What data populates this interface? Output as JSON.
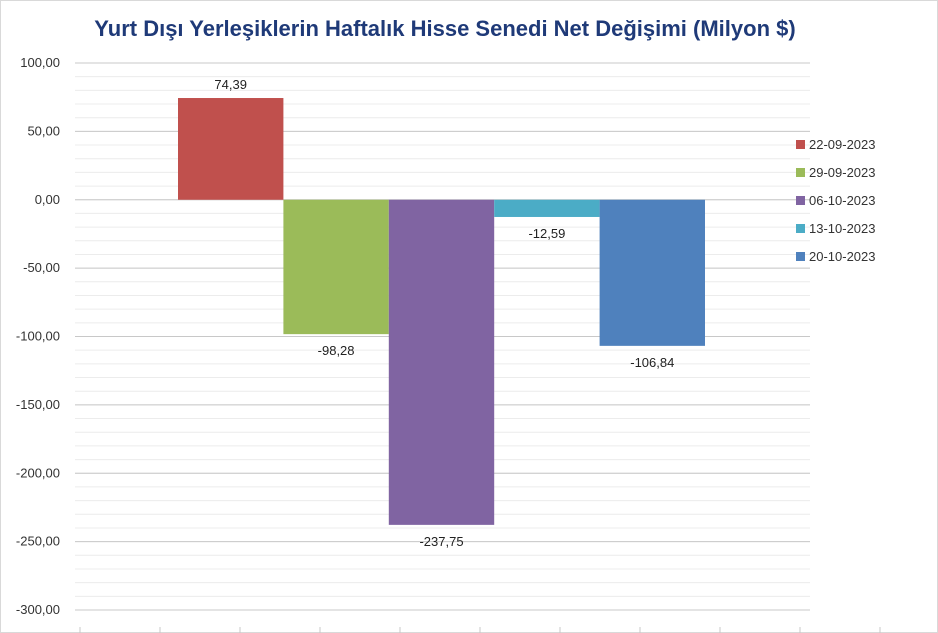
{
  "chart_data": {
    "type": "bar",
    "title": "Yurt Dışı Yerleşiklerin Haftalık Hisse Senedi Net Değişimi (Milyon $)",
    "ylim": [
      -300,
      100
    ],
    "yticks": [
      "100,00",
      "50,00",
      "0,00",
      "-50,00",
      "-100,00",
      "-150,00",
      "-200,00",
      "-250,00",
      "-300,00"
    ],
    "grid": true,
    "legend_position": "right",
    "series": [
      {
        "name": "22-09-2023",
        "value": 74.39,
        "label": "74,39",
        "color": "#c0504d"
      },
      {
        "name": "29-09-2023",
        "value": -98.28,
        "label": "-98,28",
        "color": "#9bbb59"
      },
      {
        "name": "06-10-2023",
        "value": -237.75,
        "label": "-237,75",
        "color": "#8064a2"
      },
      {
        "name": "13-10-2023",
        "value": -12.59,
        "label": "-12,59",
        "color": "#4bacc6"
      },
      {
        "name": "20-10-2023",
        "value": -106.84,
        "label": "-106,84",
        "color": "#4f81bd"
      }
    ]
  }
}
